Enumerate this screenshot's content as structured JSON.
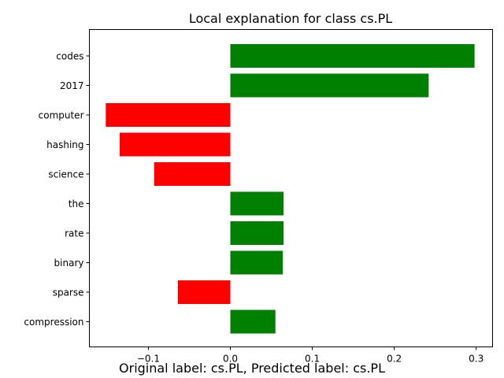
{
  "chart_data": {
    "type": "bar",
    "orientation": "horizontal",
    "title": "Local explanation for class cs.PL",
    "categories": [
      "codes",
      "2017",
      "computer",
      "hashing",
      "science",
      "the",
      "rate",
      "binary",
      "sparse",
      "compression"
    ],
    "values": [
      0.298,
      0.242,
      -0.152,
      -0.135,
      -0.093,
      0.065,
      0.065,
      0.064,
      -0.064,
      0.055
    ],
    "colors": {
      "positive": "#008000",
      "negative": "#ff0000"
    },
    "xlim": [
      -0.172,
      0.32
    ],
    "xticks": [
      -0.1,
      0.0,
      0.1,
      0.2,
      0.3
    ],
    "xtick_labels": [
      "−0.1",
      "0.0",
      "0.1",
      "0.2",
      "0.3"
    ],
    "grid": false,
    "caption": "Original label: cs.PL, Predicted label: cs.PL"
  }
}
